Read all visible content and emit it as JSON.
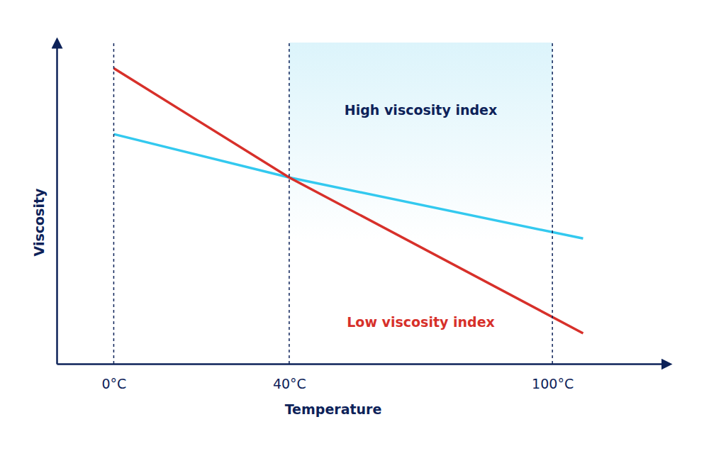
{
  "chart_data": {
    "type": "line",
    "x_label": "Temperature",
    "y_label": "Viscosity",
    "x": [
      0,
      40,
      107
    ],
    "series": [
      {
        "name": "High viscosity index",
        "color": "#33c9ef",
        "values": [
          71.5,
          58,
          39
        ]
      },
      {
        "name": "Low viscosity index",
        "color": "#d7302a",
        "values": [
          92,
          58,
          9.5
        ]
      }
    ],
    "xlim": [
      -13,
      126
    ],
    "xticks": [
      {
        "value": 0,
        "label": "0°C"
      },
      {
        "value": 40,
        "label": "40°C"
      },
      {
        "value": 100,
        "label": "100°C"
      }
    ],
    "ylim": [
      0,
      100
    ],
    "yticks": [],
    "tick_labels": "x",
    "grid": true,
    "highlight_x": [
      40,
      100
    ]
  }
}
